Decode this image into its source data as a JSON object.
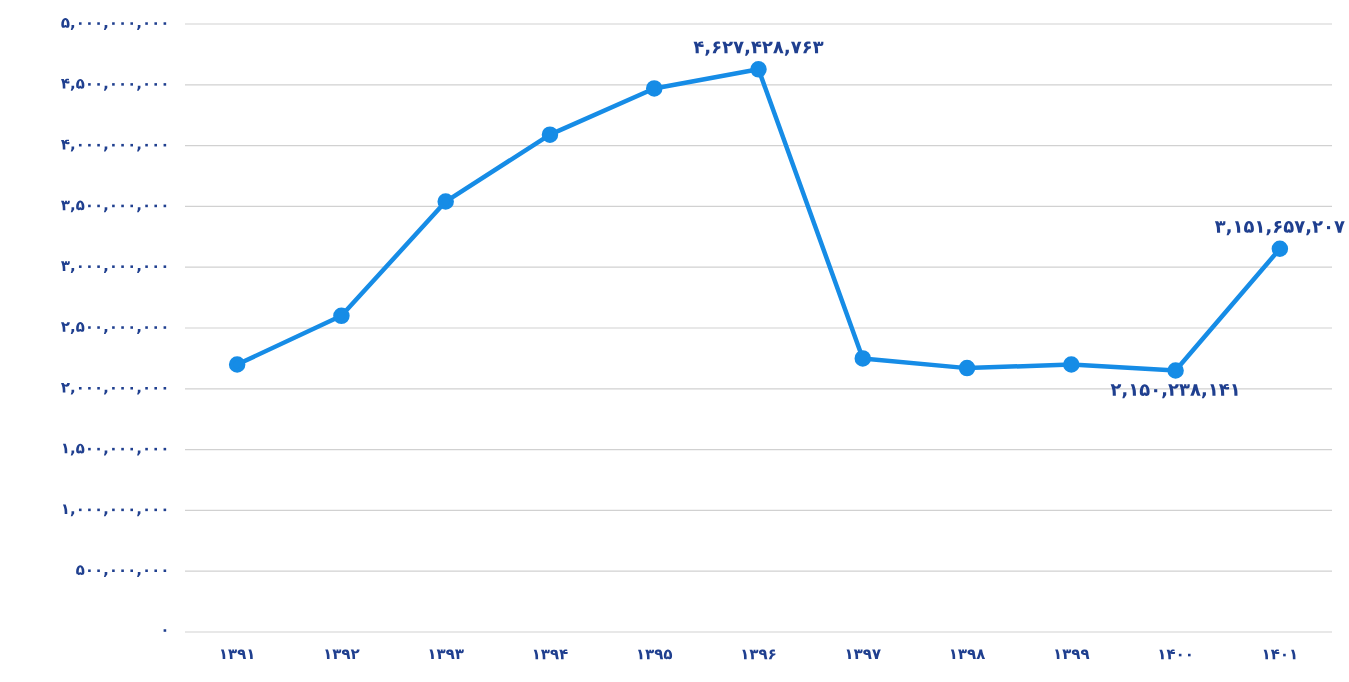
{
  "chart_data": {
    "type": "line",
    "categories": [
      "۱۳۹۱",
      "۱۳۹۲",
      "۱۳۹۳",
      "۱۳۹۴",
      "۱۳۹۵",
      "۱۳۹۶",
      "۱۳۹۷",
      "۱۳۹۸",
      "۱۳۹۹",
      "۱۴۰۰",
      "۱۴۰۱"
    ],
    "values": [
      2200000000,
      2600000000,
      3540000000,
      4090000000,
      4470000000,
      4627428763,
      2250000000,
      2170000000,
      2200000000,
      2150238141,
      3151657207
    ],
    "value_labels": [
      null,
      null,
      null,
      null,
      null,
      "۴,۶۲۷,۴۲۸,۷۶۳",
      null,
      null,
      null,
      "۲,۱۵۰,۲۳۸,۱۴۱",
      "۳,۱۵۱,۶۵۷,۲۰۷"
    ],
    "color": "#168ce6",
    "marker": "circle",
    "line_style": "solid",
    "grid": "y",
    "ylim": [
      0,
      5000000000
    ],
    "yticks": [
      {
        "value": 0,
        "label": "۰"
      },
      {
        "value": 500000000,
        "label": "۵۰۰,۰۰۰,۰۰۰"
      },
      {
        "value": 1000000000,
        "label": "۱,۰۰۰,۰۰۰,۰۰۰"
      },
      {
        "value": 1500000000,
        "label": "۱,۵۰۰,۰۰۰,۰۰۰"
      },
      {
        "value": 2000000000,
        "label": "۲,۰۰۰,۰۰۰,۰۰۰"
      },
      {
        "value": 2500000000,
        "label": "۲,۵۰۰,۰۰۰,۰۰۰"
      },
      {
        "value": 3000000000,
        "label": "۳,۰۰۰,۰۰۰,۰۰۰"
      },
      {
        "value": 3500000000,
        "label": "۳,۵۰۰,۰۰۰,۰۰۰"
      },
      {
        "value": 4000000000,
        "label": "۴,۰۰۰,۰۰۰,۰۰۰"
      },
      {
        "value": 4500000000,
        "label": "۴,۵۰۰,۰۰۰,۰۰۰"
      },
      {
        "value": 5000000000,
        "label": "۵,۰۰۰,۰۰۰,۰۰۰"
      }
    ]
  }
}
